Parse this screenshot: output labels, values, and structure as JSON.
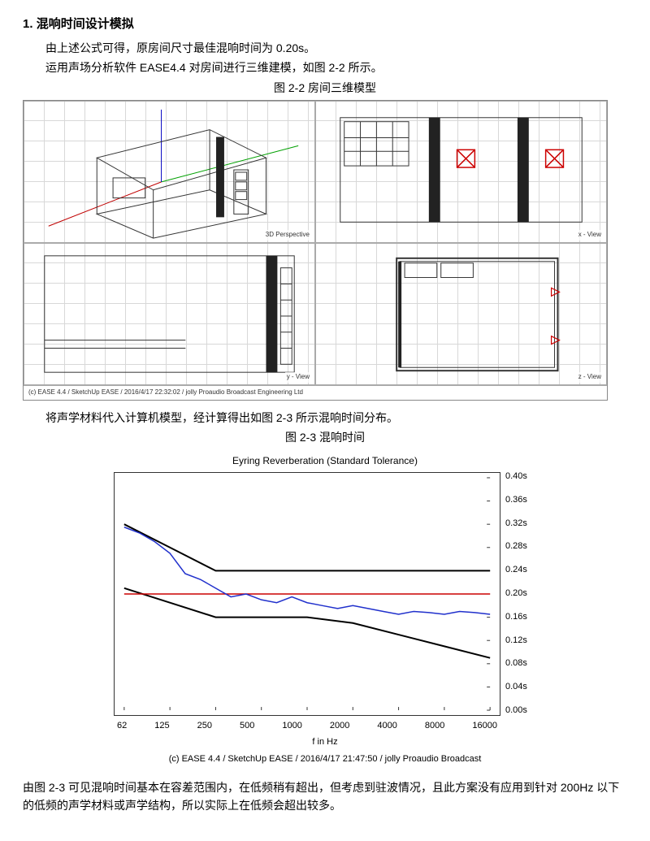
{
  "section": {
    "number": "1.",
    "title": "混响时间设计模拟"
  },
  "paragraphs": {
    "p1": "由上述公式可得，原房间尺寸最佳混响时间为 0.20s。",
    "p2": "运用声场分析软件 EASE4.4 对房间进行三维建模，如图 2-2 所示。",
    "fig22": "图 2-2  房间三维模型",
    "p3": "将声学材料代入计算机模型，经计算得出如图 2-3 所示混响时间分布。",
    "fig23": "图 2-3  混响时间",
    "p4": "由图 2-3 可见混响时间基本在容差范围内，在低频稍有超出，但考虑到驻波情况，且此方案没有应用到针对 200Hz 以下的低频的声学材料或声学结构，所以实际上在低频会超出较多。"
  },
  "tech_drawing": {
    "panels": {
      "tl": {
        "tag": "3D Perspective"
      },
      "tr": {
        "tag": "x - View"
      },
      "bl": {
        "tag": "y - View"
      },
      "br": {
        "tag": "z - View"
      }
    },
    "cross_color": "#cc0000",
    "line_color_axis_x": "#c00000",
    "line_color_axis_y": "#00a000",
    "line_color_axis_z": "#0000c0",
    "grid_color": "#d8d8d8",
    "wire_color": "#333333",
    "footer": "(c) EASE 4.4  / SketchUp EASE  / 2016/4/17 22:32:02 / jolly Proaudio Broadcast Engineering Ltd"
  },
  "chart": {
    "type": "line",
    "title": "Eyring Reverberation (Standard Tolerance)",
    "x_categories": [
      "62",
      "125",
      "250",
      "500",
      "1000",
      "2000",
      "4000",
      "8000",
      "16000"
    ],
    "x_axis_label": "f in Hz",
    "ylim_min": 0.0,
    "ylim_max": 0.4,
    "ytick_step": 0.04,
    "yticks": [
      "0.40s",
      "0.36s",
      "0.32s",
      "0.28s",
      "0.24s",
      "0.20s",
      "0.16s",
      "0.12s",
      "0.08s",
      "0.04s",
      "0.00s"
    ],
    "series": {
      "upper_tol": {
        "color": "#000000",
        "width": 2,
        "y": [
          0.32,
          0.28,
          0.24,
          0.24,
          0.24,
          0.24,
          0.24,
          0.24,
          0.24
        ]
      },
      "lower_tol": {
        "color": "#000000",
        "width": 2,
        "y": [
          0.21,
          0.185,
          0.16,
          0.16,
          0.16,
          0.15,
          0.13,
          0.11,
          0.09
        ]
      },
      "target": {
        "color": "#cc0000",
        "width": 1.5,
        "y": [
          0.2,
          0.2,
          0.2,
          0.2,
          0.2,
          0.2,
          0.2,
          0.2,
          0.2
        ]
      },
      "measured": {
        "color": "#2030cc",
        "width": 1.5,
        "y_dense": [
          0.315,
          0.305,
          0.29,
          0.27,
          0.235,
          0.225,
          0.21,
          0.195,
          0.2,
          0.19,
          0.185,
          0.195,
          0.185,
          0.18,
          0.175,
          0.18,
          0.175,
          0.17,
          0.165,
          0.17,
          0.168,
          0.165,
          0.17,
          0.168,
          0.165
        ]
      }
    },
    "footer": "(c) EASE 4.4  / SketchUp EASE  / 2016/4/17 21:47:50 / jolly Proaudio Broadcast",
    "background_color": "#ffffff",
    "axis_color": "#333333",
    "tick_color": "#333333",
    "fontsize_title": 12,
    "fontsize_axis": 11
  }
}
